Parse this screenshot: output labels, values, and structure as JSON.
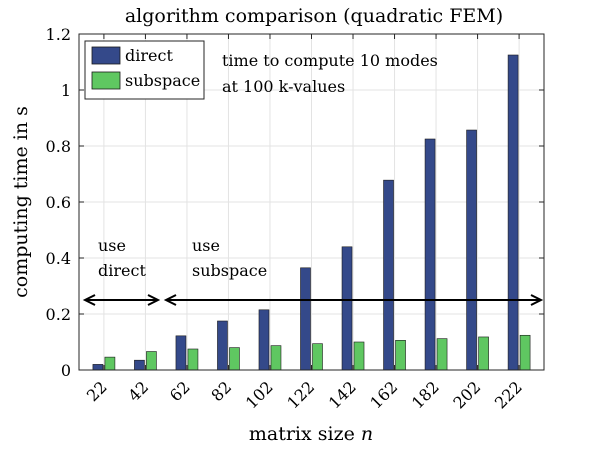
{
  "chart_data": {
    "type": "bar",
    "title": "algorithm comparison (quadratic FEM)",
    "xlabel": "matrix size",
    "xlabel_var": "n",
    "ylabel": "computing time in s",
    "ylim": [
      0,
      1.2
    ],
    "yticks": [
      0,
      0.2,
      0.4,
      0.6,
      0.8,
      1,
      1.2
    ],
    "ytick_labels": [
      "0",
      "0.2",
      "0.4",
      "0.6",
      "0.8",
      "1",
      "1.2"
    ],
    "categories": [
      "22",
      "42",
      "62",
      "82",
      "102",
      "122",
      "142",
      "162",
      "182",
      "202",
      "222"
    ],
    "grid": true,
    "legend_position": "top-left",
    "series": [
      {
        "name": "direct",
        "color": "#34498a",
        "values": [
          0.02,
          0.035,
          0.122,
          0.175,
          0.215,
          0.365,
          0.44,
          0.678,
          0.825,
          0.857,
          1.125
        ]
      },
      {
        "name": "subspace",
        "color": "#5fc761",
        "values": [
          0.046,
          0.066,
          0.075,
          0.08,
          0.087,
          0.094,
          0.1,
          0.106,
          0.112,
          0.118,
          0.124
        ]
      }
    ],
    "annotations": {
      "note_line1": "time to compute 10 modes",
      "note_line2": "at 100 k-values",
      "direct_line1": "use",
      "direct_line2": "direct",
      "subspace_line1": "use",
      "subspace_line2": "subspace"
    }
  }
}
